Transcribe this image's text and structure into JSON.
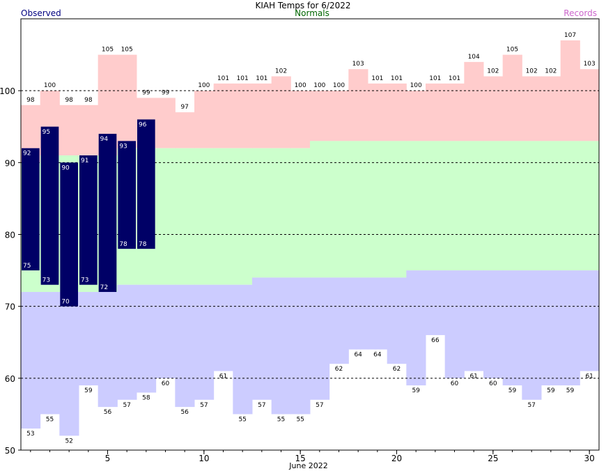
{
  "chart_data": {
    "type": "bar",
    "title": "KIAH Temps for 6/2022",
    "xlabel": "June 2022",
    "legend": {
      "observed": "Observed",
      "normals": "Normals",
      "records": "Records"
    },
    "ylim": [
      50,
      110
    ],
    "yticks": [
      50,
      60,
      70,
      80,
      90,
      100
    ],
    "xticks": [
      5,
      10,
      15,
      20,
      25,
      30
    ],
    "days": [
      1,
      2,
      3,
      4,
      5,
      6,
      7,
      8,
      9,
      10,
      11,
      12,
      13,
      14,
      15,
      16,
      17,
      18,
      19,
      20,
      21,
      22,
      23,
      24,
      25,
      26,
      27,
      28,
      29,
      30
    ],
    "record_high": [
      98,
      100,
      98,
      98,
      105,
      105,
      99,
      99,
      97,
      100,
      101,
      101,
      101,
      102,
      100,
      100,
      100,
      103,
      101,
      101,
      100,
      101,
      101,
      104,
      102,
      105,
      102,
      102,
      107,
      103
    ],
    "record_low": [
      53,
      55,
      52,
      59,
      56,
      57,
      58,
      60,
      56,
      57,
      61,
      55,
      57,
      55,
      55,
      57,
      62,
      64,
      64,
      62,
      59,
      66,
      60,
      61,
      60,
      59,
      57,
      59,
      59,
      61
    ],
    "normal_high": [
      90,
      91,
      91,
      91,
      91,
      92,
      92,
      92,
      92,
      92,
      92,
      92,
      92,
      92,
      92,
      93,
      93,
      93,
      93,
      93,
      93,
      93,
      93,
      93,
      93,
      93,
      93,
      93,
      93,
      93
    ],
    "normal_low": [
      72,
      72,
      72,
      72,
      72,
      73,
      73,
      73,
      73,
      73,
      73,
      73,
      74,
      74,
      74,
      74,
      74,
      74,
      74,
      74,
      75,
      75,
      75,
      75,
      75,
      75,
      75,
      75,
      75,
      75
    ],
    "observed": [
      {
        "day": 1,
        "high": 92,
        "low": 75
      },
      {
        "day": 2,
        "high": 95,
        "low": 73
      },
      {
        "day": 3,
        "high": 90,
        "low": 70
      },
      {
        "day": 4,
        "high": 91,
        "low": 73
      },
      {
        "day": 5,
        "high": 94,
        "low": 72
      },
      {
        "day": 6,
        "high": 93,
        "low": 78
      },
      {
        "day": 7,
        "high": 96,
        "low": 78
      }
    ],
    "grid_lines": [
      60,
      70,
      80,
      90,
      100
    ],
    "colors": {
      "record": "#ffcccc",
      "normal": "#ccffcc",
      "below_normal": "#ccccff",
      "observed": "#000066",
      "observed_text": "#ffffff",
      "legend_observed": "#000080",
      "legend_normals": "#006600",
      "legend_records": "#cc66cc",
      "grid": "#000000"
    }
  }
}
